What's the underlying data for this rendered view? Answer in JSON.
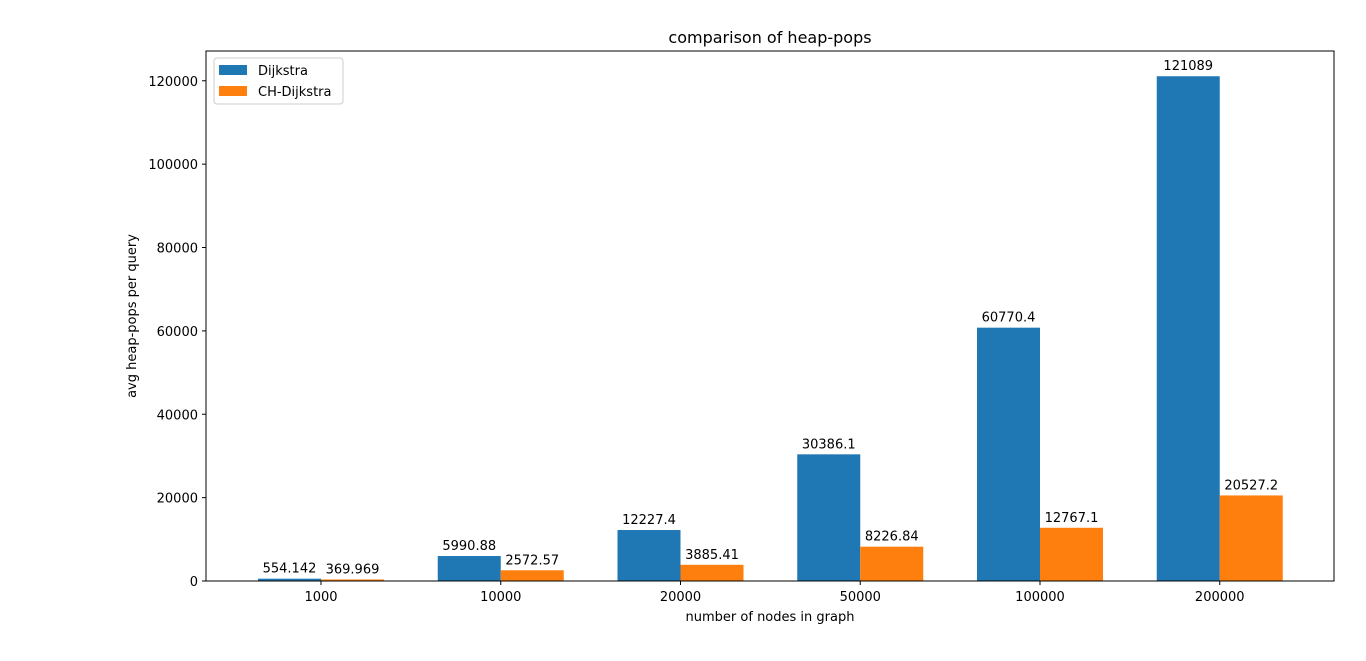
{
  "chart_data": {
    "type": "bar",
    "title": "comparison of heap-pops",
    "xlabel": "number of nodes in graph",
    "ylabel": "avg heap-pops per query",
    "categories": [
      "1000",
      "10000",
      "20000",
      "50000",
      "100000",
      "200000"
    ],
    "series": [
      {
        "name": "Dijkstra",
        "color": "#1f77b4",
        "values": [
          554.142,
          5990.88,
          12227.4,
          30386.1,
          60770.4,
          121089
        ],
        "labels": [
          "554.142",
          "5990.88",
          "12227.4",
          "30386.1",
          "60770.4",
          "121089"
        ]
      },
      {
        "name": "CH-Dijkstra",
        "color": "#ff7f0e",
        "values": [
          369.969,
          2572.57,
          3885.41,
          8226.84,
          12767.1,
          20527.2
        ],
        "labels": [
          "369.969",
          "2572.57",
          "3885.41",
          "8226.84",
          "12767.1",
          "20527.2"
        ]
      }
    ],
    "yticks": [
      "0",
      "20000",
      "40000",
      "60000",
      "80000",
      "100000",
      "120000"
    ],
    "ytick_values": [
      0,
      20000,
      40000,
      60000,
      80000,
      100000,
      120000
    ],
    "ylim": [
      0,
      127143
    ],
    "grid": false,
    "legend_position": "top-left"
  }
}
